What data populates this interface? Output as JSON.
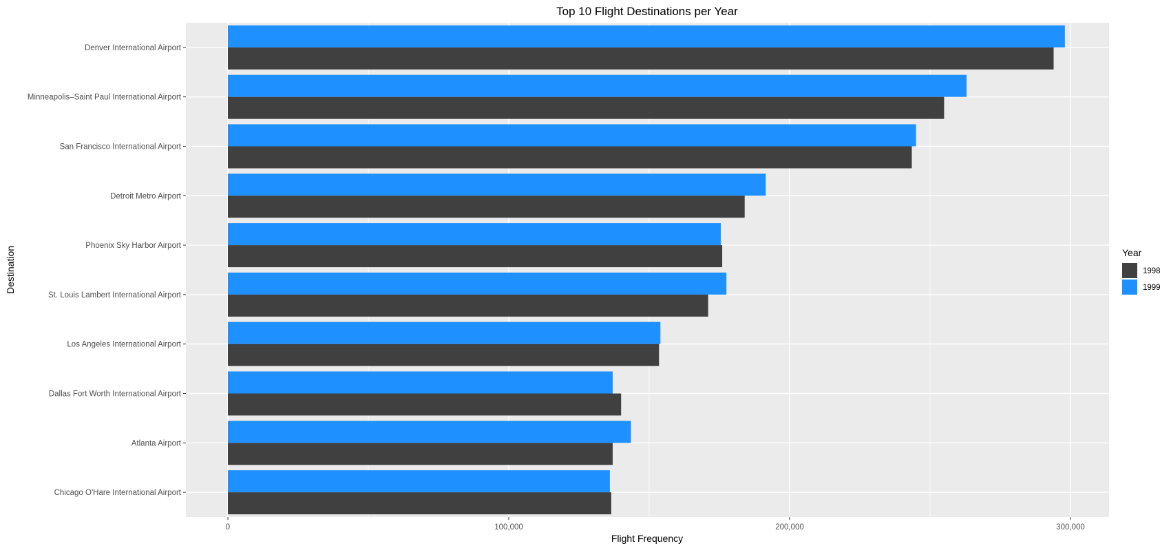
{
  "chart_data": {
    "type": "bar",
    "orientation": "horizontal",
    "title": "Top 10 Flight Destinations per Year",
    "xlabel": "Flight Frequency",
    "ylabel": "Destination",
    "xlim": [
      0,
      300000
    ],
    "x_ticks": [
      0,
      100000,
      200000,
      300000
    ],
    "x_tick_labels": [
      "0",
      "100,000",
      "200,000",
      "300,000"
    ],
    "grid": true,
    "legend_position": "right",
    "legend_title": "Year",
    "categories": [
      "Denver International Airport",
      "Minneapolis–Saint Paul International Airport",
      "San Francisco International Airport",
      "Detroit Metro Airport",
      "Phoenix Sky Harbor Airport",
      "St. Louis Lambert International Airport",
      "Los Angeles International Airport",
      "Dallas Fort Worth International Airport",
      "Atlanta Airport",
      "Chicago O'Hare International Airport"
    ],
    "series": [
      {
        "name": "1998",
        "color": "#404040",
        "values": [
          294000,
          255000,
          243500,
          184000,
          176000,
          171000,
          153500,
          140000,
          137000,
          136500
        ]
      },
      {
        "name": "1999",
        "color": "#1E90FF",
        "values": [
          298000,
          263000,
          245000,
          191500,
          175500,
          177500,
          154000,
          137000,
          143500,
          136000
        ]
      }
    ]
  }
}
